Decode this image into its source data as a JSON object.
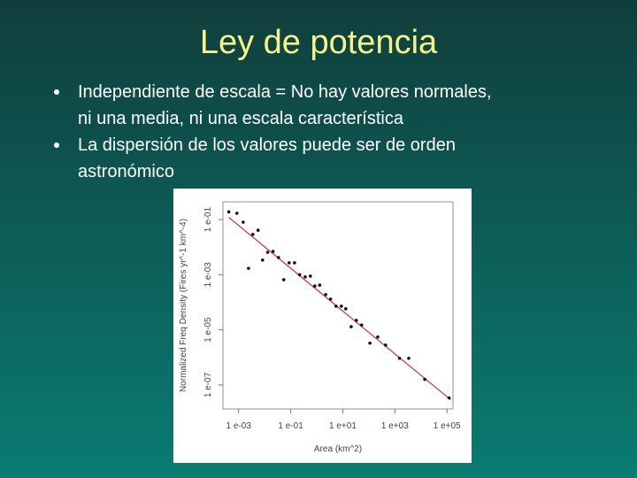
{
  "title": "Ley de potencia",
  "bullets": [
    [
      "Independiente de escala = No hay valores normales,",
      "ni una media, ni una escala característica"
    ],
    [
      "La dispersión de los valores puede ser de orden",
      "astronómico"
    ]
  ],
  "chart_data": {
    "type": "scatter",
    "x_label": "Area (km^2)",
    "y_label": "Normalized Freq Density (Fires yr^-1 km^-4)",
    "log_x": true,
    "log_y": true,
    "xlim": [
      0.00025,
      170000
    ],
    "ylim": [
      1.35e-08,
      0.44
    ],
    "xticks": [
      {
        "value": 0.001,
        "label": "1 e-03"
      },
      {
        "value": 0.1,
        "label": "1 e-01"
      },
      {
        "value": 10,
        "label": "1 e+01"
      },
      {
        "value": 1000,
        "label": "1 e+03"
      },
      {
        "value": 100000,
        "label": "1 e+05"
      }
    ],
    "yticks": [
      {
        "value": 1e-07,
        "label": "1 e-07"
      },
      {
        "value": 1e-05,
        "label": "1 e-05"
      },
      {
        "value": 0.001,
        "label": "1 e-03"
      },
      {
        "value": 0.1,
        "label": "1 e-01"
      }
    ],
    "color": "#111111",
    "x": [
      0.00042,
      0.00086,
      0.0015,
      0.0024,
      0.0035,
      0.0056,
      0.0083,
      0.013,
      0.021,
      0.034,
      0.054,
      0.087,
      0.14,
      0.22,
      0.36,
      0.57,
      0.84,
      1.3,
      2.2,
      3.4,
      5.5,
      8.8,
      13,
      21,
      33,
      53,
      110,
      220,
      440,
      1500,
      3400,
      14000,
      120000
    ],
    "values": [
      0.19,
      0.17,
      0.08,
      0.0017,
      0.029,
      0.041,
      0.0034,
      0.0065,
      0.007,
      0.0042,
      0.00066,
      0.0027,
      0.0027,
      0.001,
      0.00083,
      0.00089,
      0.00039,
      0.00042,
      0.00019,
      0.00013,
      7.2e-05,
      7.2e-05,
      5.8e-05,
      1.3e-05,
      2.2e-05,
      1.5e-05,
      3.3e-06,
      5.5e-06,
      2.8e-06,
      9.3e-07,
      9.3e-07,
      1.6e-07,
      3.4e-08
    ],
    "fit_line": {
      "color": "#d03030",
      "x": [
        0.00042,
        140000
      ],
      "values": [
        0.12,
        2.9e-08
      ]
    }
  }
}
